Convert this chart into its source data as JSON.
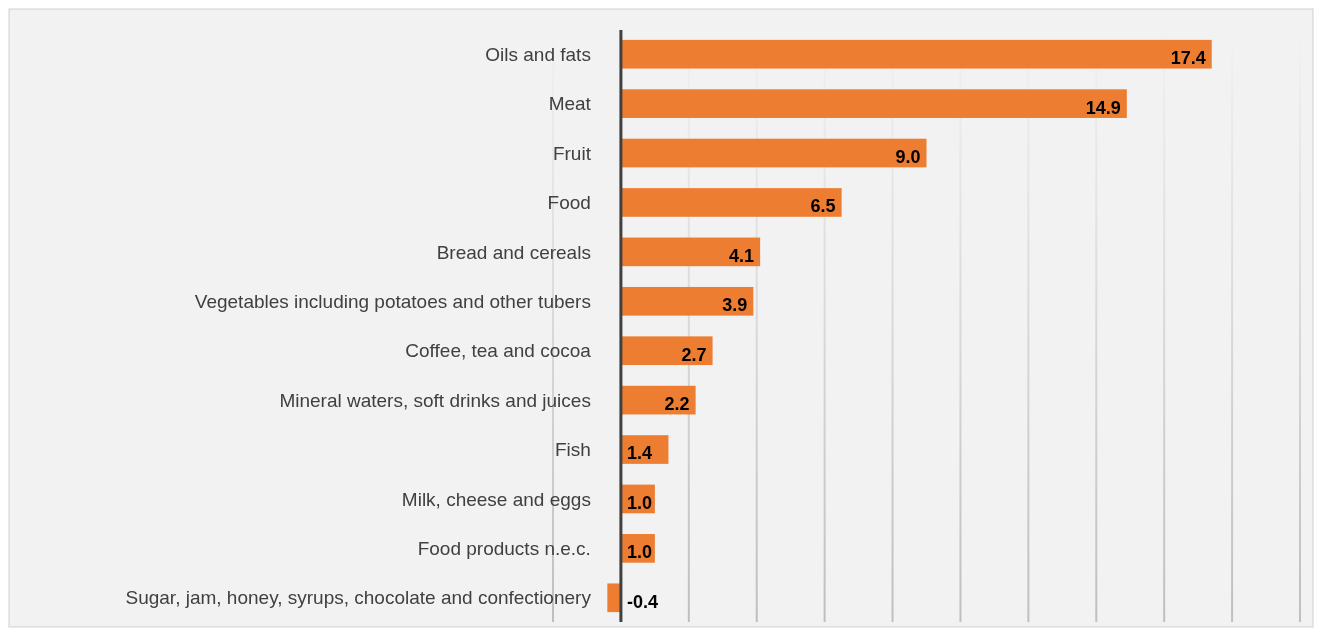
{
  "chart_data": {
    "type": "bar",
    "orientation": "horizontal",
    "categories": [
      "Oils and fats",
      "Meat",
      "Fruit",
      "Food",
      "Bread and cereals",
      "Vegetables including potatoes and other tubers",
      "Coffee, tea and cocoa",
      "Mineral waters, soft drinks and juices",
      "Fish",
      "Milk, cheese and eggs",
      "Food products n.e.c.",
      "Sugar, jam, honey, syrups, chocolate and confectionery"
    ],
    "values": [
      17.4,
      14.9,
      9.0,
      6.5,
      4.1,
      3.9,
      2.7,
      2.2,
      1.4,
      1.0,
      1.0,
      -0.4
    ],
    "value_labels": [
      "17.4",
      "14.9",
      "9.0",
      "6.5",
      "4.1",
      "3.9",
      "2.7",
      "2.2",
      "1.4",
      "1.0",
      "1.0",
      "-0.4"
    ],
    "color": "#ed7d31",
    "xlim": [
      -2,
      20
    ],
    "xticks": [
      -2,
      0,
      2,
      4,
      6,
      8,
      10,
      12,
      14,
      16,
      18,
      20
    ],
    "tick_labels": "y",
    "grid": "x"
  }
}
